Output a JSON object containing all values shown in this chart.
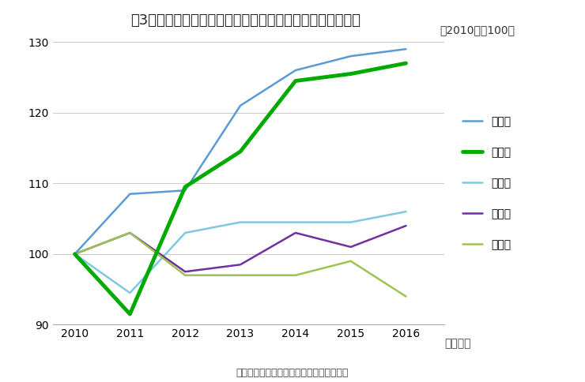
{
  "title": "図3　県別の鉱工業生産指数の推移（中部経済産業局管内）",
  "subtitle": "（2010年＝100）",
  "xlabel": "（暦年）",
  "source": "（出所）経済産業省「地域別鉱工業指数」",
  "years": [
    2010,
    2011,
    2012,
    2013,
    2014,
    2015,
    2016
  ],
  "series": [
    {
      "name": "石川県",
      "values": [
        100.0,
        108.5,
        109.0,
        121.0,
        126.0,
        128.0,
        129.0
      ],
      "color": "#5B9BD5",
      "linewidth": 1.8,
      "zorder": 3
    },
    {
      "name": "三重県",
      "values": [
        100.0,
        91.5,
        109.5,
        114.5,
        124.5,
        125.5,
        127.0
      ],
      "color": "#00AA00",
      "linewidth": 3.5,
      "zorder": 4
    },
    {
      "name": "愛知県",
      "values": [
        100.0,
        94.5,
        103.0,
        104.5,
        104.5,
        104.5,
        106.0
      ],
      "color": "#7EC8E3",
      "linewidth": 1.8,
      "zorder": 2
    },
    {
      "name": "富山県",
      "values": [
        100.0,
        103.0,
        97.5,
        98.5,
        103.0,
        101.0,
        104.0
      ],
      "color": "#7030A0",
      "linewidth": 1.8,
      "zorder": 2
    },
    {
      "name": "岐阜県",
      "values": [
        100.0,
        103.0,
        97.0,
        97.0,
        97.0,
        99.0,
        94.0
      ],
      "color": "#9DC350",
      "linewidth": 1.8,
      "zorder": 2
    }
  ],
  "ylim": [
    90,
    130
  ],
  "yticks": [
    90,
    100,
    110,
    120,
    130
  ],
  "xticks": [
    2010,
    2011,
    2012,
    2013,
    2014,
    2015,
    2016
  ],
  "background_color": "#ffffff",
  "grid_color": "#cccccc",
  "title_fontsize": 13,
  "subtitle_fontsize": 10,
  "tick_fontsize": 10,
  "legend_fontsize": 10,
  "source_fontsize": 9,
  "xlabel_fontsize": 10
}
